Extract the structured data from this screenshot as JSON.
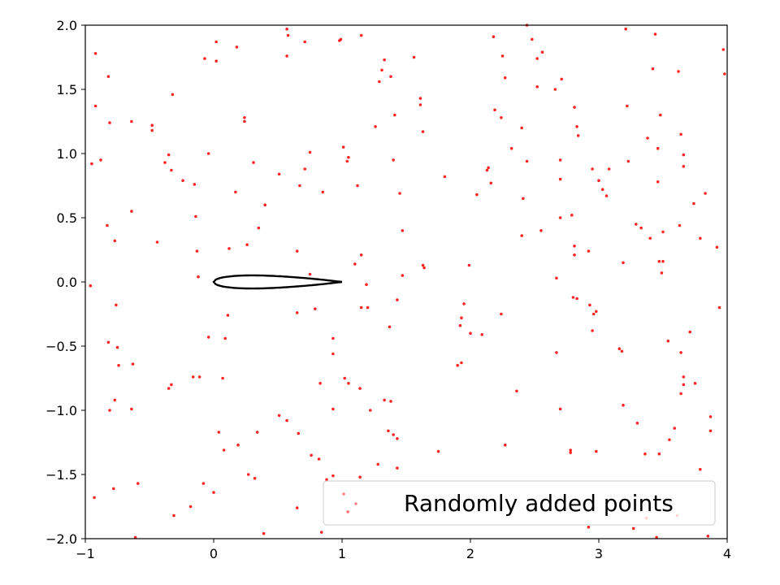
{
  "chart_data": {
    "type": "scatter",
    "title": "",
    "xlabel": "",
    "ylabel": "",
    "xlim": [
      -1,
      4
    ],
    "ylim": [
      -2,
      2
    ],
    "xticks": [
      -1,
      0,
      1,
      2,
      3,
      4
    ],
    "yticks": [
      -2.0,
      -1.5,
      -1.0,
      -0.5,
      0.0,
      0.5,
      1.0,
      1.5,
      2.0
    ],
    "xtick_labels": [
      "−1",
      "0",
      "1",
      "2",
      "3",
      "4"
    ],
    "ytick_labels": [
      "−2.0",
      "−1.5",
      "−1.0",
      "−0.5",
      "0.0",
      "0.5",
      "1.0",
      "1.5",
      "2.0"
    ],
    "grid": false,
    "legend": {
      "location": "lower-right",
      "entries": [
        "Randomly added points"
      ]
    },
    "series": [
      {
        "name": "Randomly added points",
        "kind": "scatter",
        "color": "#ff0000",
        "points": [
          [
            -0.92,
            1.78
          ],
          [
            -0.92,
            1.37
          ],
          [
            -0.95,
            0.92
          ],
          [
            -0.88,
            0.95
          ],
          [
            -0.96,
            -0.03
          ],
          [
            -0.82,
            1.6
          ],
          [
            -0.81,
            1.24
          ],
          [
            -0.83,
            0.44
          ],
          [
            -0.77,
            0.32
          ],
          [
            -0.76,
            -0.18
          ],
          [
            -0.82,
            -0.47
          ],
          [
            -0.75,
            -0.51
          ],
          [
            -0.74,
            -0.65
          ],
          [
            -0.63,
            -0.64
          ],
          [
            -0.77,
            -0.92
          ],
          [
            -0.81,
            -1.0
          ],
          [
            -0.64,
            -0.99
          ],
          [
            -0.78,
            -1.61
          ],
          [
            -0.59,
            -1.57
          ],
          [
            -0.93,
            -1.68
          ],
          [
            -0.61,
            -1.99
          ],
          [
            -0.64,
            1.25
          ],
          [
            -0.48,
            1.22
          ],
          [
            -0.48,
            1.18
          ],
          [
            -0.64,
            0.55
          ],
          [
            -0.44,
            0.31
          ],
          [
            -0.38,
            0.93
          ],
          [
            -0.35,
            0.99
          ],
          [
            -0.33,
            0.87
          ],
          [
            -0.32,
            1.46
          ],
          [
            -0.24,
            0.79
          ],
          [
            -0.15,
            0.76
          ],
          [
            -0.14,
            0.51
          ],
          [
            -0.13,
            0.24
          ],
          [
            -0.12,
            0.04
          ],
          [
            -0.07,
            1.74
          ],
          [
            -0.04,
            1.0
          ],
          [
            0.02,
            1.87
          ],
          [
            0.02,
            1.72
          ],
          [
            -0.16,
            -0.74
          ],
          [
            -0.11,
            -0.74
          ],
          [
            -0.35,
            -0.83
          ],
          [
            -0.33,
            -0.8
          ],
          [
            -0.04,
            -0.43
          ],
          [
            -0.18,
            -1.75
          ],
          [
            -0.08,
            -1.57
          ],
          [
            0.0,
            -1.64
          ],
          [
            -0.31,
            -1.82
          ],
          [
            0.04,
            -1.17
          ],
          [
            0.08,
            -1.31
          ],
          [
            0.11,
            -0.26
          ],
          [
            0.09,
            -0.44
          ],
          [
            0.07,
            -0.75
          ],
          [
            0.18,
            1.83
          ],
          [
            0.24,
            1.28
          ],
          [
            0.24,
            1.25
          ],
          [
            0.17,
            0.7
          ],
          [
            0.12,
            0.26
          ],
          [
            0.26,
            0.29
          ],
          [
            0.31,
            0.93
          ],
          [
            0.35,
            0.42
          ],
          [
            0.4,
            0.6
          ],
          [
            0.51,
            0.84
          ],
          [
            0.57,
            1.97
          ],
          [
            0.58,
            1.92
          ],
          [
            0.57,
            1.76
          ],
          [
            0.71,
            1.87
          ],
          [
            0.75,
            1.01
          ],
          [
            0.71,
            0.88
          ],
          [
            0.67,
            0.75
          ],
          [
            0.65,
            0.24
          ],
          [
            0.75,
            0.06
          ],
          [
            0.79,
            -0.21
          ],
          [
            0.65,
            -0.24
          ],
          [
            0.85,
            0.7
          ],
          [
            0.98,
            1.88
          ],
          [
            0.99,
            1.89
          ],
          [
            1.01,
            1.05
          ],
          [
            1.04,
            0.94
          ],
          [
            1.05,
            0.97
          ],
          [
            1.12,
            0.75
          ],
          [
            1.15,
            1.92
          ],
          [
            1.15,
            0.21
          ],
          [
            1.1,
            0.14
          ],
          [
            1.19,
            -0.02
          ],
          [
            1.15,
            -0.2
          ],
          [
            1.2,
            -0.2
          ],
          [
            0.93,
            -0.44
          ],
          [
            0.93,
            -0.56
          ],
          [
            1.02,
            -0.75
          ],
          [
            1.05,
            -0.79
          ],
          [
            1.14,
            -0.83
          ],
          [
            0.83,
            -0.79
          ],
          [
            0.93,
            -0.99
          ],
          [
            0.51,
            -1.04
          ],
          [
            0.57,
            -1.08
          ],
          [
            0.66,
            -1.18
          ],
          [
            0.76,
            -1.35
          ],
          [
            0.82,
            -1.38
          ],
          [
            0.34,
            -1.17
          ],
          [
            0.19,
            -1.27
          ],
          [
            0.27,
            -1.5
          ],
          [
            0.32,
            -1.53
          ],
          [
            0.88,
            -1.54
          ],
          [
            0.93,
            -1.51
          ],
          [
            0.65,
            -1.76
          ],
          [
            0.84,
            -1.95
          ],
          [
            1.14,
            -1.52
          ],
          [
            1.28,
            -1.42
          ],
          [
            1.05,
            -1.79
          ],
          [
            0.39,
            -1.96
          ],
          [
            1.26,
            1.21
          ],
          [
            1.29,
            1.56
          ],
          [
            1.31,
            1.65
          ],
          [
            1.33,
            1.73
          ],
          [
            1.38,
            1.6
          ],
          [
            1.41,
            1.3
          ],
          [
            1.4,
            0.95
          ],
          [
            1.45,
            0.69
          ],
          [
            1.47,
            0.4
          ],
          [
            1.47,
            0.05
          ],
          [
            1.43,
            -0.14
          ],
          [
            1.37,
            -0.35
          ],
          [
            1.22,
            -1.0
          ],
          [
            1.33,
            -0.92
          ],
          [
            1.38,
            -0.93
          ],
          [
            1.36,
            -1.16
          ],
          [
            1.4,
            -1.19
          ],
          [
            1.43,
            -1.22
          ],
          [
            1.43,
            -1.45
          ],
          [
            1.56,
            1.75
          ],
          [
            1.61,
            1.43
          ],
          [
            1.61,
            1.38
          ],
          [
            1.63,
            1.17
          ],
          [
            1.63,
            0.13
          ],
          [
            1.64,
            0.11
          ],
          [
            1.8,
            0.82
          ],
          [
            1.75,
            -1.32
          ],
          [
            1.9,
            -0.65
          ],
          [
            1.92,
            -0.34
          ],
          [
            1.93,
            -0.28
          ],
          [
            1.95,
            -0.17
          ],
          [
            1.93,
            -0.63
          ],
          [
            1.99,
            0.13
          ],
          [
            2.0,
            -0.4
          ],
          [
            2.05,
            0.68
          ],
          [
            2.09,
            -0.41
          ],
          [
            2.13,
            0.87
          ],
          [
            2.14,
            0.89
          ],
          [
            2.16,
            0.77
          ],
          [
            2.18,
            1.91
          ],
          [
            2.19,
            1.34
          ],
          [
            2.24,
            1.28
          ],
          [
            2.25,
            1.76
          ],
          [
            2.27,
            1.59
          ],
          [
            2.32,
            1.04
          ],
          [
            2.24,
            -0.25
          ],
          [
            2.27,
            -1.27
          ],
          [
            2.36,
            -0.85
          ],
          [
            2.4,
            1.2
          ],
          [
            2.41,
            0.65
          ],
          [
            2.4,
            0.36
          ],
          [
            2.44,
            2.0
          ],
          [
            2.44,
            0.94
          ],
          [
            2.48,
            1.89
          ],
          [
            2.52,
            1.52
          ],
          [
            2.52,
            1.74
          ],
          [
            2.56,
            1.79
          ],
          [
            2.55,
            0.4
          ],
          [
            2.66,
            1.5
          ],
          [
            2.7,
            0.95
          ],
          [
            2.7,
            0.8
          ],
          [
            2.71,
            1.58
          ],
          [
            2.7,
            0.5
          ],
          [
            2.67,
            0.03
          ],
          [
            2.67,
            -0.55
          ],
          [
            2.7,
            -0.99
          ],
          [
            2.78,
            -1.31
          ],
          [
            2.78,
            -1.33
          ],
          [
            2.79,
            0.52
          ],
          [
            2.81,
            1.36
          ],
          [
            2.83,
            1.21
          ],
          [
            2.84,
            1.14
          ],
          [
            2.81,
            0.28
          ],
          [
            2.81,
            0.21
          ],
          [
            2.8,
            -0.12
          ],
          [
            2.83,
            -0.13
          ],
          [
            2.92,
            0.24
          ],
          [
            2.93,
            -0.18
          ],
          [
            2.95,
            0.88
          ],
          [
            2.95,
            -0.38
          ],
          [
            2.96,
            -0.25
          ],
          [
            2.98,
            -0.23
          ],
          [
            2.98,
            -1.32
          ],
          [
            3.0,
            0.79
          ],
          [
            3.03,
            0.72
          ],
          [
            3.06,
            0.67
          ],
          [
            3.08,
            0.88
          ],
          [
            2.92,
            -1.91
          ],
          [
            3.16,
            -0.52
          ],
          [
            3.18,
            -0.54
          ],
          [
            3.19,
            -0.96
          ],
          [
            3.19,
            0.15
          ],
          [
            3.21,
            1.97
          ],
          [
            3.22,
            1.37
          ],
          [
            3.23,
            0.94
          ],
          [
            3.27,
            -1.92
          ],
          [
            3.29,
            0.45
          ],
          [
            3.3,
            -1.1
          ],
          [
            3.33,
            0.42
          ],
          [
            3.36,
            -1.34
          ],
          [
            3.38,
            1.12
          ],
          [
            3.4,
            0.34
          ],
          [
            3.42,
            1.66
          ],
          [
            3.44,
            1.93
          ],
          [
            3.46,
            1.04
          ],
          [
            3.46,
            0.78
          ],
          [
            3.47,
            0.16
          ],
          [
            3.5,
            0.16
          ],
          [
            3.49,
            0.07
          ],
          [
            3.48,
            1.3
          ],
          [
            3.5,
            0.39
          ],
          [
            3.47,
            -1.34
          ],
          [
            3.54,
            -0.46
          ],
          [
            3.55,
            -1.23
          ],
          [
            3.59,
            -1.14
          ],
          [
            3.62,
            1.64
          ],
          [
            3.64,
            1.15
          ],
          [
            3.66,
            0.99
          ],
          [
            3.66,
            0.9
          ],
          [
            3.63,
            0.44
          ],
          [
            3.64,
            -0.55
          ],
          [
            3.66,
            -0.74
          ],
          [
            3.66,
            -0.8
          ],
          [
            3.64,
            -0.87
          ],
          [
            3.71,
            -0.39
          ],
          [
            3.74,
            0.61
          ],
          [
            3.75,
            -0.79
          ],
          [
            3.79,
            0.34
          ],
          [
            3.83,
            0.69
          ],
          [
            3.87,
            -1.05
          ],
          [
            3.87,
            -1.16
          ],
          [
            3.85,
            -1.98
          ],
          [
            3.92,
            0.27
          ],
          [
            3.94,
            -0.2
          ],
          [
            3.97,
            1.81
          ],
          [
            3.98,
            1.62
          ],
          [
            3.79,
            -1.46
          ],
          [
            3.61,
            -1.82
          ],
          [
            3.37,
            -1.84
          ],
          [
            3.45,
            -1.99
          ]
        ]
      }
    ],
    "curves": [
      {
        "kind": "line",
        "color": "#000000",
        "description_shape": "airfoil"
      }
    ]
  }
}
